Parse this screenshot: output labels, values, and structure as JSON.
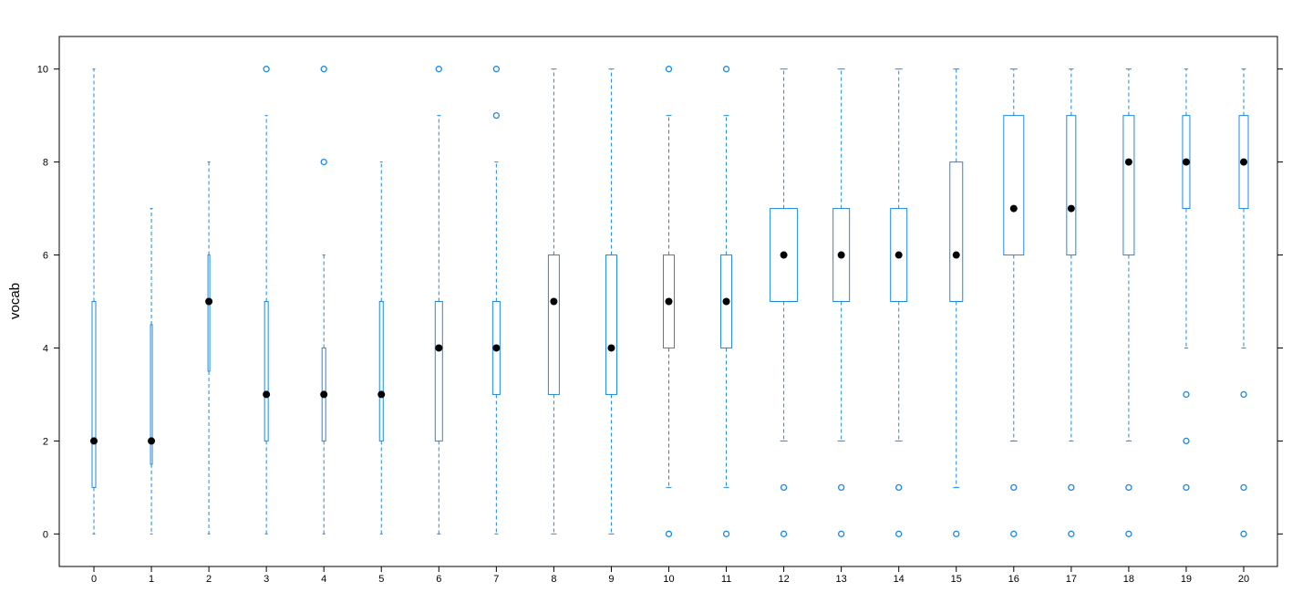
{
  "chart_data": {
    "type": "boxplot",
    "title": "",
    "xlabel": "",
    "ylabel": "vocab",
    "categories": [
      "0",
      "1",
      "2",
      "3",
      "4",
      "5",
      "6",
      "7",
      "8",
      "9",
      "10",
      "11",
      "12",
      "13",
      "14",
      "15",
      "16",
      "17",
      "18",
      "19",
      "20"
    ],
    "boxes": [
      {
        "category": "0",
        "whisker_low": 0,
        "q1": 1,
        "median": 2,
        "q3": 5,
        "whisker_high": 10,
        "outliers": []
      },
      {
        "category": "1",
        "whisker_low": 0,
        "q1": 1.5,
        "median": 2,
        "q3": 4.5,
        "whisker_high": 7,
        "outliers": []
      },
      {
        "category": "2",
        "whisker_low": 0,
        "q1": 3.5,
        "median": 5,
        "q3": 6,
        "whisker_high": 8,
        "outliers": []
      },
      {
        "category": "3",
        "whisker_low": 0,
        "q1": 2,
        "median": 3,
        "q3": 5,
        "whisker_high": 9,
        "outliers": [
          10
        ]
      },
      {
        "category": "4",
        "whisker_low": 0,
        "q1": 2,
        "median": 3,
        "q3": 4,
        "whisker_high": 6,
        "outliers": [
          8,
          10
        ]
      },
      {
        "category": "5",
        "whisker_low": 0,
        "q1": 2,
        "median": 3,
        "q3": 5,
        "whisker_high": 8,
        "outliers": []
      },
      {
        "category": "6",
        "whisker_low": 0,
        "q1": 2,
        "median": 4,
        "q3": 5,
        "whisker_high": 9,
        "outliers": [
          10
        ]
      },
      {
        "category": "7",
        "whisker_low": 0,
        "q1": 3,
        "median": 4,
        "q3": 5,
        "whisker_high": 8,
        "outliers": [
          9,
          10
        ]
      },
      {
        "category": "8",
        "whisker_low": 0,
        "q1": 3,
        "median": 5,
        "q3": 6,
        "whisker_high": 10,
        "outliers": []
      },
      {
        "category": "9",
        "whisker_low": 0,
        "q1": 3,
        "median": 4,
        "q3": 6,
        "whisker_high": 10,
        "outliers": []
      },
      {
        "category": "10",
        "whisker_low": 1,
        "q1": 4,
        "median": 5,
        "q3": 6,
        "whisker_high": 9,
        "outliers": [
          0,
          10
        ]
      },
      {
        "category": "11",
        "whisker_low": 1,
        "q1": 4,
        "median": 5,
        "q3": 6,
        "whisker_high": 9,
        "outliers": [
          0,
          10
        ]
      },
      {
        "category": "12",
        "whisker_low": 2,
        "q1": 5,
        "median": 6,
        "q3": 7,
        "whisker_high": 10,
        "outliers": [
          0,
          1
        ]
      },
      {
        "category": "13",
        "whisker_low": 2,
        "q1": 5,
        "median": 6,
        "q3": 7,
        "whisker_high": 10,
        "outliers": [
          0,
          1
        ]
      },
      {
        "category": "14",
        "whisker_low": 2,
        "q1": 5,
        "median": 6,
        "q3": 7,
        "whisker_high": 10,
        "outliers": [
          0,
          1
        ]
      },
      {
        "category": "15",
        "whisker_low": 1,
        "q1": 5,
        "median": 6,
        "q3": 8,
        "whisker_high": 10,
        "outliers": [
          0
        ]
      },
      {
        "category": "16",
        "whisker_low": 2,
        "q1": 6,
        "median": 7,
        "q3": 9,
        "whisker_high": 10,
        "outliers": [
          0,
          1
        ]
      },
      {
        "category": "17",
        "whisker_low": 2,
        "q1": 6,
        "median": 7,
        "q3": 9,
        "whisker_high": 10,
        "outliers": [
          0,
          1
        ]
      },
      {
        "category": "18",
        "whisker_low": 2,
        "q1": 6,
        "median": 8,
        "q3": 9,
        "whisker_high": 10,
        "outliers": [
          0,
          1
        ]
      },
      {
        "category": "19",
        "whisker_low": 4,
        "q1": 7,
        "median": 8,
        "q3": 9,
        "whisker_high": 10,
        "outliers": [
          1,
          2,
          3
        ]
      },
      {
        "category": "20",
        "whisker_low": 4,
        "q1": 7,
        "median": 8,
        "q3": 9,
        "whisker_high": 10,
        "outliers": [
          0,
          1,
          3
        ]
      }
    ],
    "y_ticks": [
      "0",
      "2",
      "4",
      "6",
      "8",
      "10"
    ],
    "ylim": [
      -0.7,
      10.7
    ],
    "grid": false,
    "colors": {
      "box": "#1e88e5",
      "median": "#000000",
      "frame": "#000000"
    }
  }
}
